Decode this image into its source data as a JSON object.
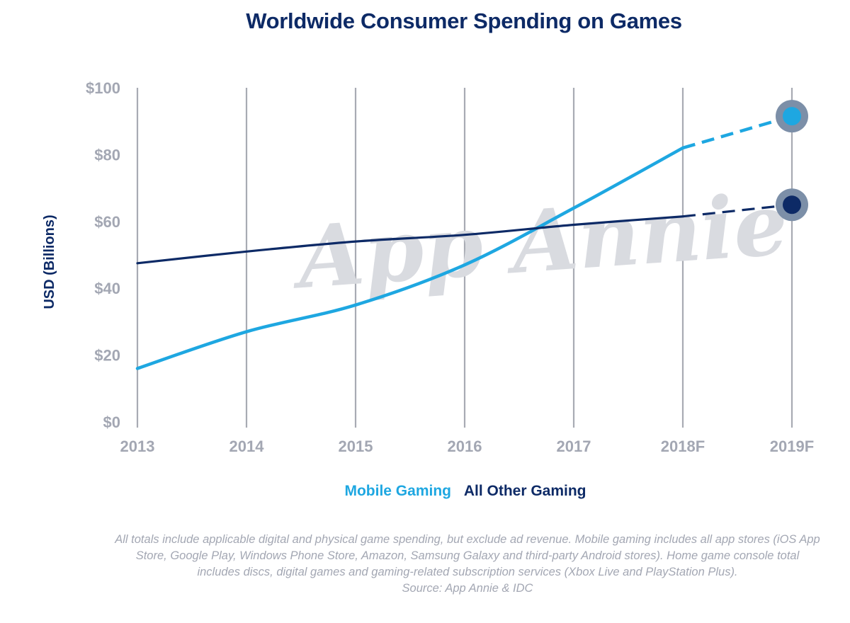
{
  "chart_data": {
    "type": "line",
    "title": "Worldwide Consumer Spending on Games",
    "ylabel": "USD (Billions)",
    "xlabel": "",
    "categories": [
      "2013",
      "2014",
      "2015",
      "2016",
      "2017",
      "2018F",
      "2019F"
    ],
    "y_ticks": [
      "$0",
      "$20",
      "$40",
      "$60",
      "$80",
      "$100"
    ],
    "y_tick_values": [
      0,
      20,
      40,
      60,
      80,
      100
    ],
    "ylim": [
      0,
      100
    ],
    "grid": "vertical",
    "legend_position": "bottom",
    "series": [
      {
        "name": "Mobile Gaming",
        "values": [
          16,
          27,
          35,
          47,
          64,
          82,
          91.5
        ],
        "color": "#1ea7e1",
        "forecast_from": "2018F"
      },
      {
        "name": "All Other Gaming",
        "values": [
          47.5,
          51,
          54,
          56,
          59,
          61.5,
          65
        ],
        "color": "#0d2a66",
        "forecast_from": "2018F"
      }
    ],
    "watermark": "App Annie"
  },
  "footnote": {
    "text": "All totals include applicable digital and physical game spending, but exclude ad revenue. Mobile gaming includes all app stores (iOS App Store, Google Play, Windows Phone Store, Amazon, Samsung Galaxy and third-party Android stores). Home game console total includes discs, digital games and gaming-related subscription services (Xbox Live and PlayStation Plus).",
    "source": "Source: App Annie & IDC"
  },
  "colors": {
    "grid": "#a8abb3",
    "tick_text": "#a3a7b3",
    "marker_halo": "#7c8fa8"
  }
}
